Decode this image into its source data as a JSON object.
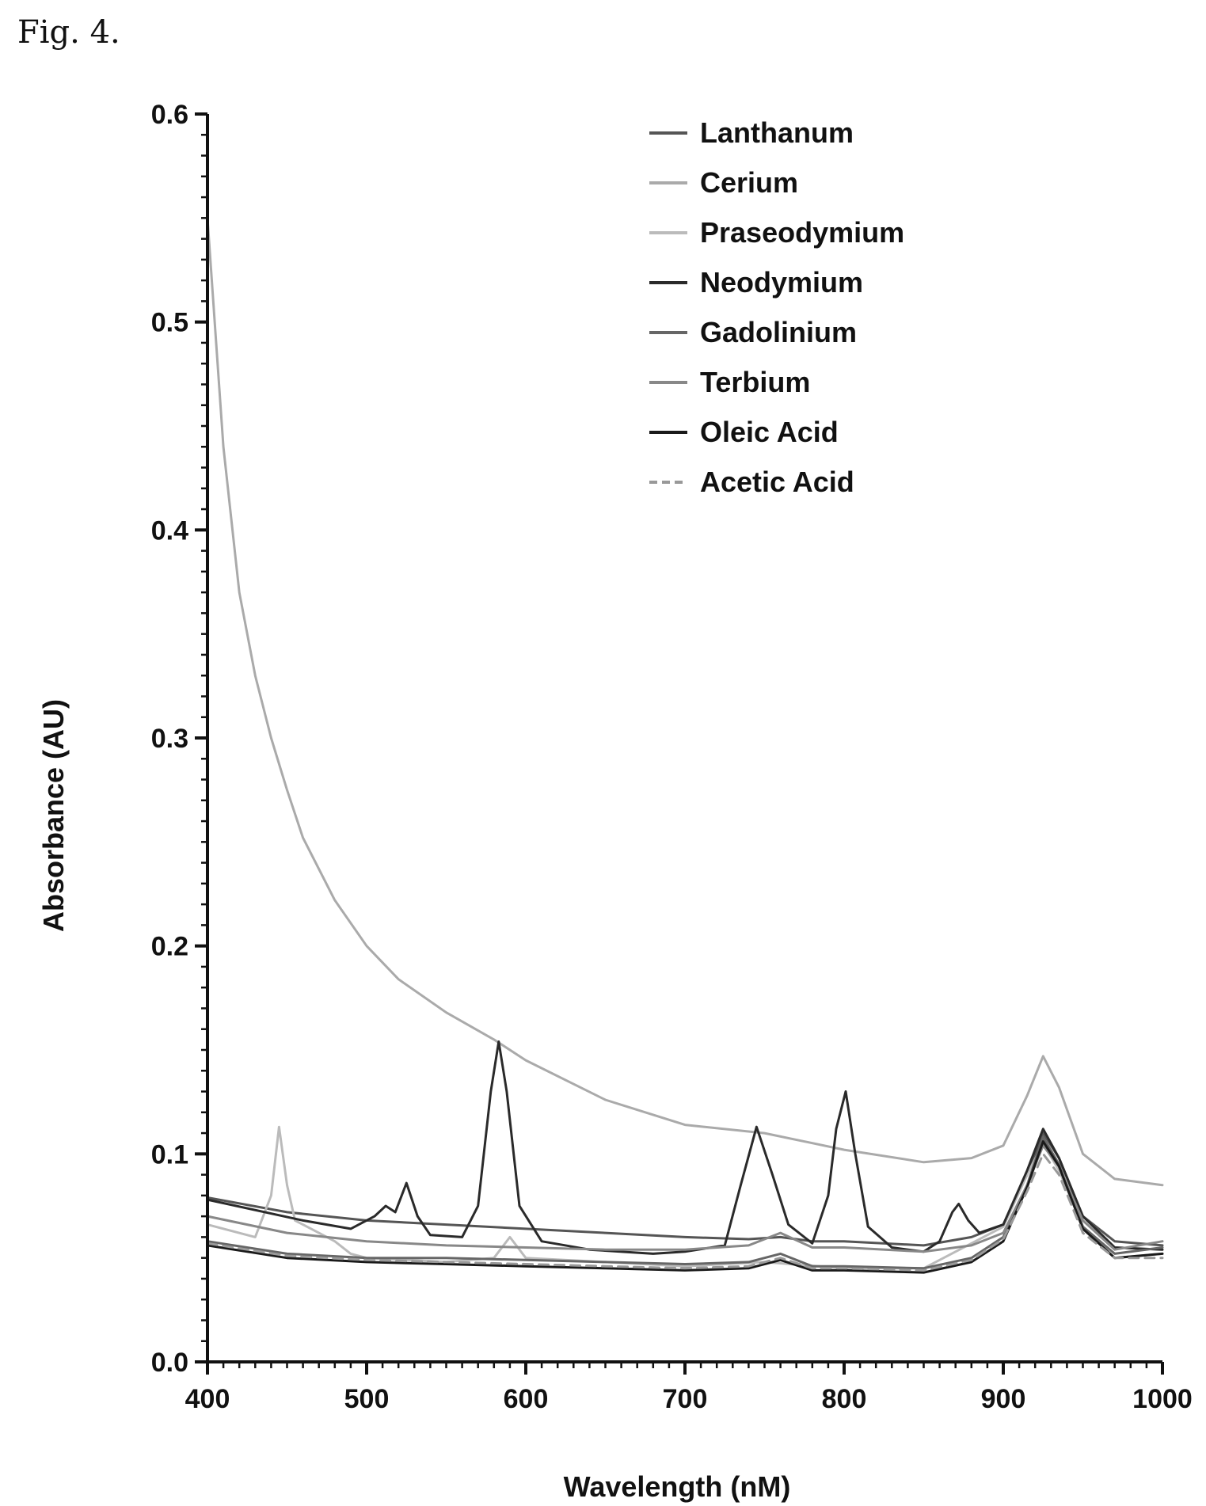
{
  "figure_label": "Fig. 4.",
  "chart_data": {
    "type": "line",
    "title": "",
    "xlabel": "Wavelength (nM)",
    "ylabel": "Absorbance (AU)",
    "xlim": [
      400,
      1000
    ],
    "ylim": [
      0,
      0.6
    ],
    "x_ticks": [
      400,
      500,
      600,
      700,
      800,
      900,
      1000
    ],
    "x_tick_labels": [
      "400",
      "500",
      "600",
      "700",
      "800",
      "900",
      "1000"
    ],
    "y_ticks": [
      0,
      0.1,
      0.2,
      0.3,
      0.4,
      0.5,
      0.6
    ],
    "y_tick_labels": [
      "0.0",
      "0.1",
      "0.2",
      "0.3",
      "0.4",
      "0.5",
      "0.6"
    ],
    "grid": false,
    "legend_position": "top-right",
    "series": [
      {
        "name": "Lanthanum",
        "color": "#555555",
        "dash": "",
        "x": [
          400,
          450,
          500,
          550,
          600,
          650,
          700,
          740,
          760,
          780,
          800,
          850,
          880,
          900,
          915,
          925,
          935,
          950,
          970,
          1000
        ],
        "y": [
          0.079,
          0.072,
          0.068,
          0.066,
          0.064,
          0.062,
          0.06,
          0.059,
          0.06,
          0.058,
          0.058,
          0.056,
          0.06,
          0.066,
          0.09,
          0.11,
          0.098,
          0.07,
          0.058,
          0.056
        ]
      },
      {
        "name": "Cerium",
        "color": "#aaaaaa",
        "dash": "",
        "x": [
          400,
          410,
          420,
          430,
          440,
          450,
          460,
          480,
          500,
          520,
          550,
          580,
          600,
          650,
          700,
          750,
          800,
          850,
          880,
          900,
          915,
          925,
          935,
          950,
          970,
          1000
        ],
        "y": [
          0.55,
          0.44,
          0.37,
          0.33,
          0.3,
          0.275,
          0.252,
          0.222,
          0.2,
          0.184,
          0.168,
          0.155,
          0.145,
          0.126,
          0.114,
          0.11,
          0.102,
          0.096,
          0.098,
          0.104,
          0.128,
          0.147,
          0.132,
          0.1,
          0.088,
          0.085
        ]
      },
      {
        "name": "Praseodymium",
        "color": "#bbbbbb",
        "dash": "",
        "x": [
          400,
          430,
          440,
          445,
          450,
          455,
          460,
          470,
          480,
          490,
          500,
          550,
          580,
          590,
          600,
          650,
          700,
          750,
          800,
          850,
          900,
          915,
          925,
          935,
          950,
          970,
          1000
        ],
        "y": [
          0.066,
          0.06,
          0.08,
          0.113,
          0.085,
          0.068,
          0.066,
          0.062,
          0.058,
          0.052,
          0.05,
          0.048,
          0.05,
          0.06,
          0.05,
          0.048,
          0.046,
          0.048,
          0.045,
          0.045,
          0.065,
          0.09,
          0.105,
          0.092,
          0.065,
          0.05,
          0.052
        ]
      },
      {
        "name": "Neodymium",
        "color": "#2a2a2a",
        "dash": "",
        "x": [
          400,
          460,
          490,
          505,
          512,
          518,
          525,
          532,
          540,
          560,
          570,
          578,
          583,
          588,
          596,
          610,
          640,
          680,
          700,
          725,
          735,
          745,
          755,
          765,
          780,
          790,
          795,
          801,
          807,
          815,
          830,
          850,
          860,
          868,
          872,
          878,
          885,
          900,
          915,
          925,
          935,
          950,
          970,
          1000
        ],
        "y": [
          0.078,
          0.068,
          0.064,
          0.07,
          0.075,
          0.072,
          0.086,
          0.07,
          0.061,
          0.06,
          0.075,
          0.13,
          0.154,
          0.13,
          0.075,
          0.058,
          0.054,
          0.052,
          0.053,
          0.056,
          0.085,
          0.113,
          0.09,
          0.066,
          0.057,
          0.08,
          0.112,
          0.13,
          0.1,
          0.065,
          0.055,
          0.053,
          0.058,
          0.072,
          0.076,
          0.068,
          0.062,
          0.066,
          0.092,
          0.112,
          0.098,
          0.07,
          0.055,
          0.054
        ]
      },
      {
        "name": "Gadolinium",
        "color": "#666666",
        "dash": "",
        "x": [
          400,
          450,
          500,
          550,
          600,
          650,
          700,
          740,
          760,
          780,
          800,
          850,
          880,
          900,
          915,
          925,
          935,
          950,
          970,
          1000
        ],
        "y": [
          0.058,
          0.052,
          0.05,
          0.05,
          0.049,
          0.048,
          0.047,
          0.048,
          0.052,
          0.046,
          0.046,
          0.045,
          0.05,
          0.06,
          0.085,
          0.108,
          0.095,
          0.065,
          0.052,
          0.055
        ]
      },
      {
        "name": "Terbium",
        "color": "#888888",
        "dash": "",
        "x": [
          400,
          450,
          500,
          550,
          600,
          650,
          700,
          740,
          760,
          780,
          800,
          850,
          880,
          900,
          915,
          925,
          935,
          950,
          970,
          1000
        ],
        "y": [
          0.07,
          0.062,
          0.058,
          0.056,
          0.055,
          0.054,
          0.054,
          0.056,
          0.062,
          0.055,
          0.055,
          0.053,
          0.056,
          0.062,
          0.085,
          0.104,
          0.094,
          0.068,
          0.054,
          0.058
        ]
      },
      {
        "name": "Oleic Acid",
        "color": "#1a1a1a",
        "dash": "",
        "x": [
          400,
          450,
          500,
          550,
          600,
          650,
          700,
          740,
          760,
          780,
          800,
          850,
          880,
          900,
          915,
          925,
          935,
          950,
          970,
          1000
        ],
        "y": [
          0.056,
          0.05,
          0.048,
          0.047,
          0.046,
          0.045,
          0.044,
          0.045,
          0.049,
          0.044,
          0.044,
          0.043,
          0.048,
          0.058,
          0.084,
          0.106,
          0.094,
          0.064,
          0.05,
          0.052
        ]
      },
      {
        "name": "Acetic Acid",
        "color": "#999999",
        "dash": "12,8",
        "x": [
          400,
          450,
          500,
          550,
          600,
          650,
          700,
          740,
          760,
          780,
          800,
          850,
          880,
          900,
          915,
          925,
          935,
          950,
          970,
          1000
        ],
        "y": [
          0.057,
          0.051,
          0.049,
          0.048,
          0.047,
          0.046,
          0.045,
          0.046,
          0.05,
          0.045,
          0.045,
          0.044,
          0.049,
          0.059,
          0.082,
          0.1,
          0.09,
          0.062,
          0.05,
          0.05
        ]
      }
    ]
  }
}
